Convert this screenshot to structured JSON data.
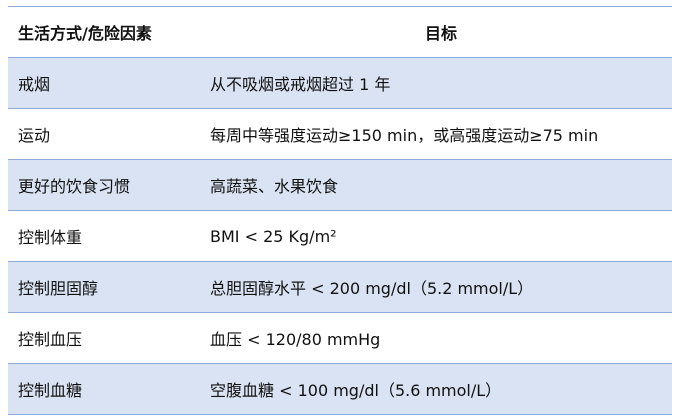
{
  "header": {
    "col1": "生活方式/危险因素",
    "col2": "目标"
  },
  "rows": [
    {
      "factor": "戒烟",
      "goal": "从不吸烟或戒烟超过 1 年"
    },
    {
      "factor": "运动",
      "goal": "每周中等强度运动≥150 min，或高强度运动≥75 min"
    },
    {
      "factor": "更好的饮食习惯",
      "goal": "高蔬菜、水果饮食"
    },
    {
      "factor": "控制体重",
      "goal": "BMI < 25 Kg/m²"
    },
    {
      "factor": "控制胆固醇",
      "goal": "总胆固醇水平 < 200 mg/dl（5.2 mmol/L）"
    },
    {
      "factor": "控制血压",
      "goal": "血压 < 120/80 mmHg"
    },
    {
      "factor": "控制血糖",
      "goal": "空腹血糖 < 100 mg/dl（5.6 mmol/L）"
    }
  ]
}
